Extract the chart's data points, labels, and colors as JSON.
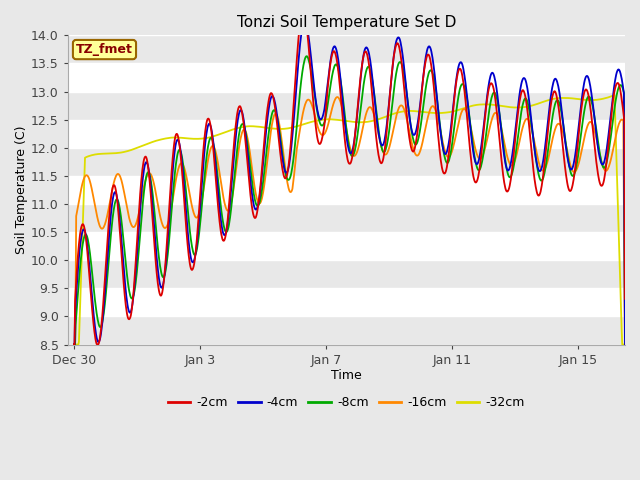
{
  "title": "Tonzi Soil Temperature Set D",
  "xlabel": "Time",
  "ylabel": "Soil Temperature (C)",
  "ylim": [
    8.5,
    14.0
  ],
  "yticks": [
    8.5,
    9.0,
    9.5,
    10.0,
    10.5,
    11.0,
    11.5,
    12.0,
    12.5,
    13.0,
    13.5,
    14.0
  ],
  "xtick_labels": [
    "Dec 30",
    "Jan 3",
    "Jan 7",
    "Jan 11",
    "Jan 15"
  ],
  "xtick_positions": [
    0,
    4,
    8,
    12,
    16
  ],
  "label_box_text": "TZ_fmet",
  "label_box_color": "#ffff99",
  "label_box_border": "#996600",
  "label_text_color": "#880000",
  "series_colors": [
    "#dd0000",
    "#0000cc",
    "#00aa00",
    "#ff8800",
    "#dddd00"
  ],
  "series_labels": [
    "-2cm",
    "-4cm",
    "-8cm",
    "-16cm",
    "-32cm"
  ],
  "bg_color": "#e8e8e8",
  "plot_bg_color": "#ffffff",
  "grid_color": "#dddddd",
  "band_color": "#e8e8e8"
}
